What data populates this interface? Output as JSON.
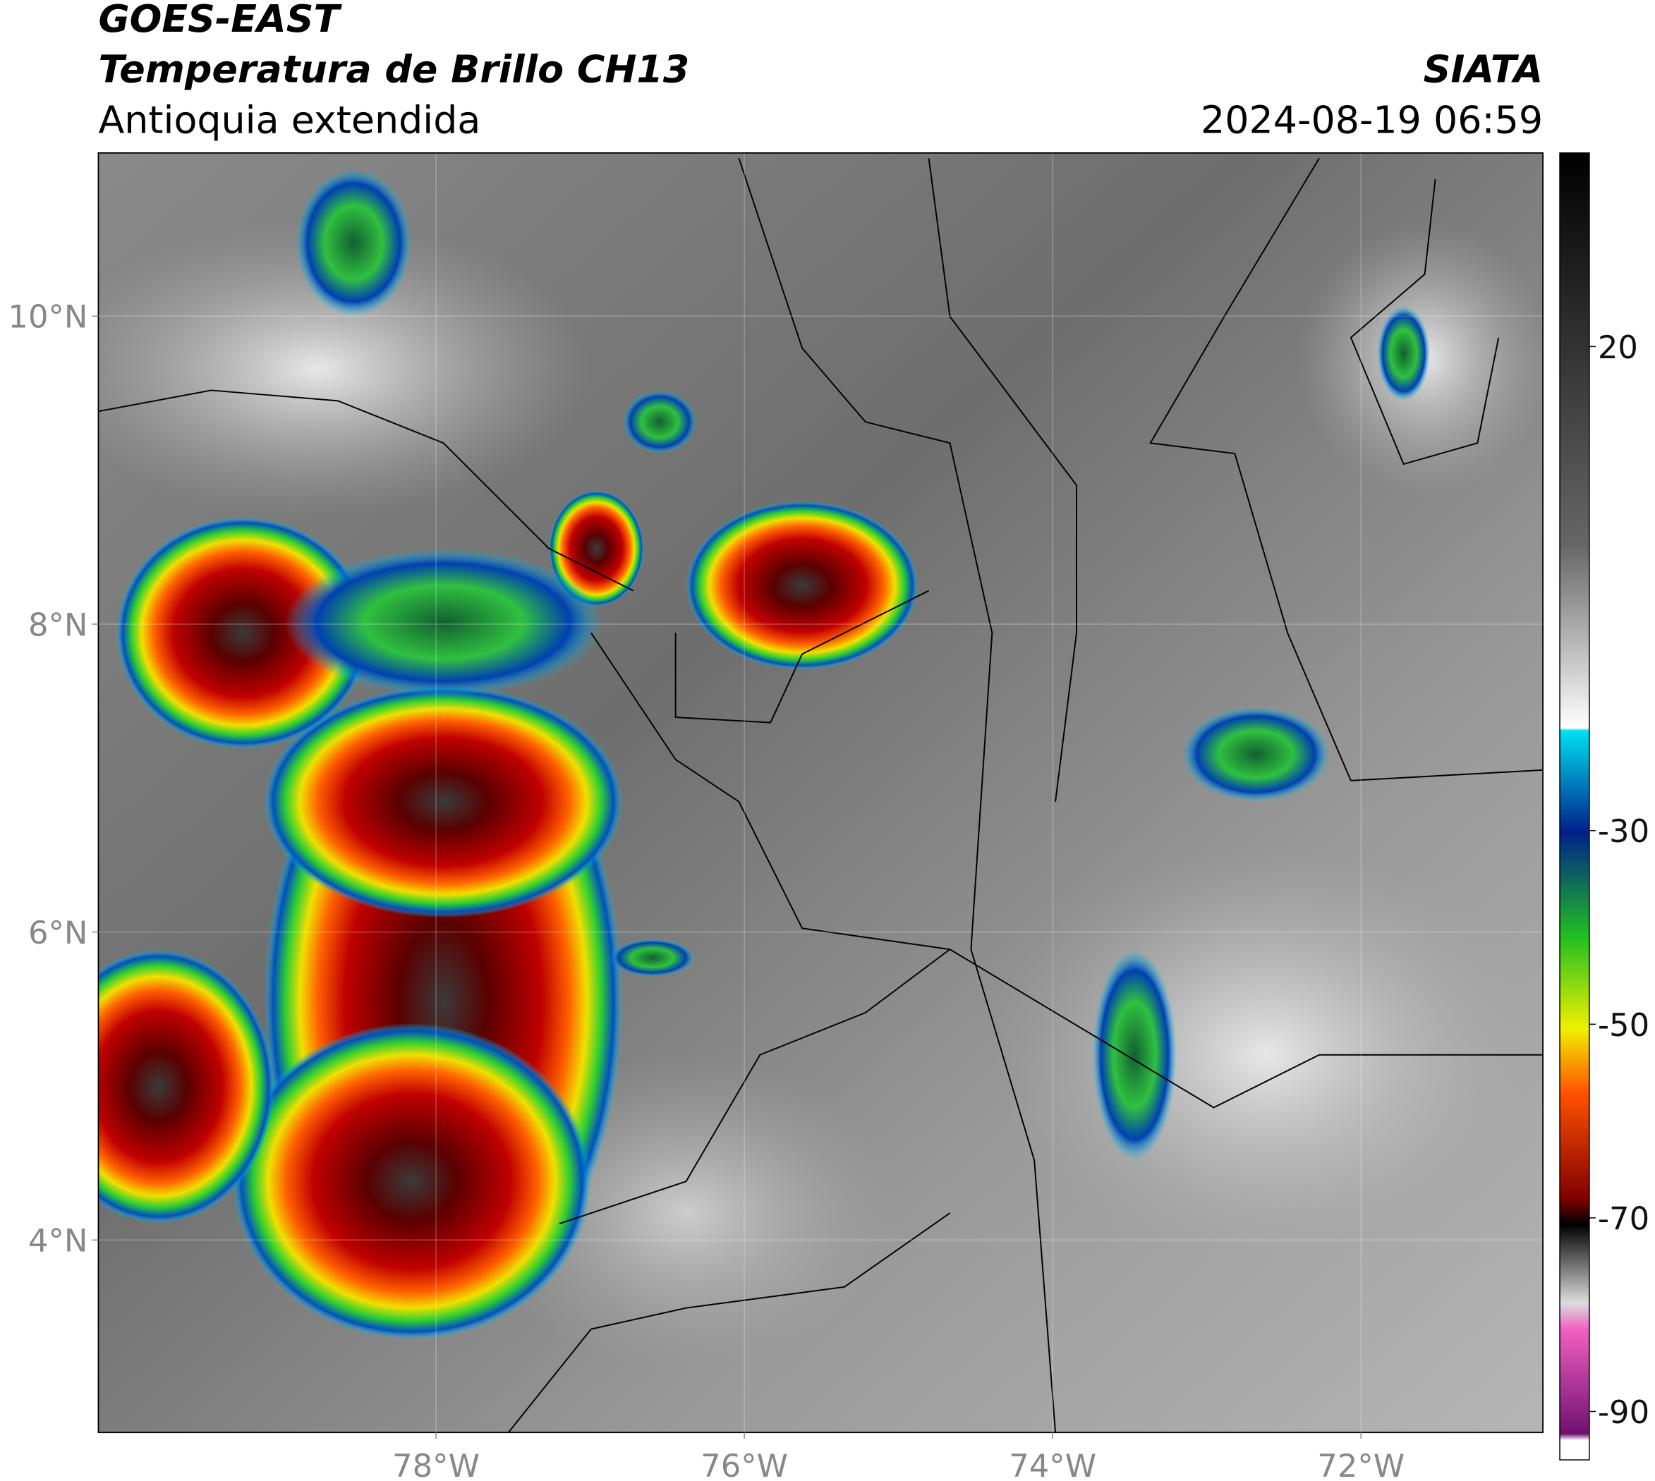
{
  "header": {
    "title": "GOES-EAST",
    "subtitle": "Temperatura de Brillo CH13",
    "region": "Antioquia extendida",
    "source": "SIATA",
    "datetime": "2024-08-19 06:59"
  },
  "map": {
    "xlim": [
      -80.19,
      -70.82
    ],
    "ylim": [
      2.75,
      11.06
    ],
    "xticks": [
      {
        "value": -78,
        "label": "78°W"
      },
      {
        "value": -76,
        "label": "76°W"
      },
      {
        "value": -74,
        "label": "74°W"
      },
      {
        "value": -72,
        "label": "72°W"
      }
    ],
    "yticks": [
      {
        "value": 4,
        "label": "4°N"
      },
      {
        "value": 6,
        "label": "6°N"
      },
      {
        "value": 8,
        "label": "8°N"
      },
      {
        "value": 10,
        "label": "10°N"
      }
    ],
    "grid": true
  },
  "colorbar": {
    "lim": [
      -95,
      40
    ],
    "ticks": [
      20,
      -30,
      -50,
      -70,
      -90
    ]
  }
}
